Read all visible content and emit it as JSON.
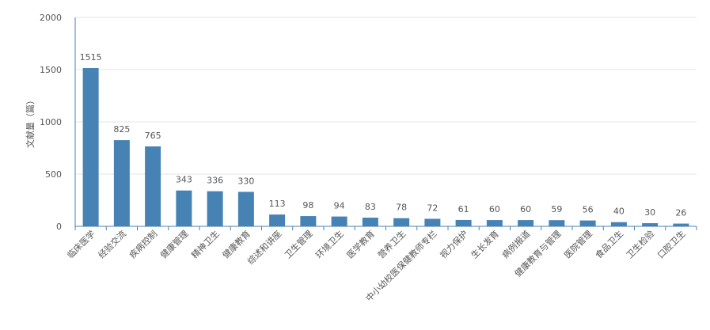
{
  "chart_data": {
    "type": "bar",
    "ylabel": "文献量（篇）",
    "ylim": [
      0,
      2000
    ],
    "yticks": [
      0,
      500,
      1000,
      1500,
      2000
    ],
    "grid": true,
    "categories": [
      "临床医学",
      "经验交流",
      "疾病控制",
      "健康管理",
      "精神卫生",
      "健康教育",
      "综述和讲座",
      "卫生管理",
      "环境卫生",
      "医学教育",
      "营养卫生",
      "中小幼校医保健教师专栏",
      "视力保护",
      "生长发育",
      "病例报道",
      "健康教育与管理",
      "医院管理",
      "食品卫生",
      "卫生检验",
      "口腔卫生"
    ],
    "values": [
      1515,
      825,
      765,
      343,
      336,
      330,
      113,
      98,
      94,
      83,
      78,
      72,
      61,
      60,
      60,
      59,
      56,
      40,
      30,
      26
    ],
    "bar_color": "#4682b4"
  }
}
